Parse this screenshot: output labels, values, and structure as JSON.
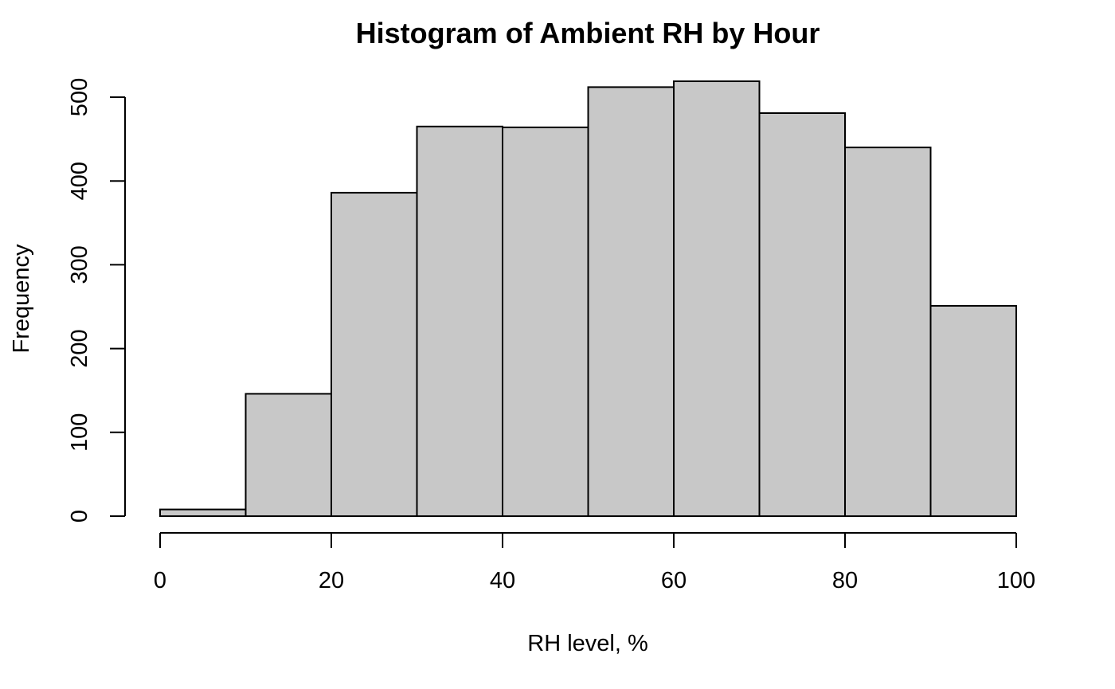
{
  "chart_data": {
    "type": "bar",
    "subtype": "histogram",
    "title": "Histogram of Ambient RH by Hour",
    "xlabel": "RH level, %",
    "ylabel": "Frequency",
    "bins": [
      {
        "start": 0,
        "end": 10,
        "count": 8
      },
      {
        "start": 10,
        "end": 20,
        "count": 146
      },
      {
        "start": 20,
        "end": 30,
        "count": 386
      },
      {
        "start": 30,
        "end": 40,
        "count": 465
      },
      {
        "start": 40,
        "end": 50,
        "count": 464
      },
      {
        "start": 50,
        "end": 60,
        "count": 512
      },
      {
        "start": 60,
        "end": 70,
        "count": 519
      },
      {
        "start": 70,
        "end": 80,
        "count": 481
      },
      {
        "start": 80,
        "end": 90,
        "count": 440
      },
      {
        "start": 90,
        "end": 100,
        "count": 251
      }
    ],
    "xlim": [
      0,
      100
    ],
    "ylim": [
      0,
      500
    ],
    "x_ticks": [
      "0",
      "20",
      "40",
      "60",
      "80",
      "100"
    ],
    "y_ticks": [
      "0",
      "100",
      "200",
      "300",
      "400",
      "500"
    ],
    "bar_color": "#c8c8c8",
    "grid": false,
    "legend": "none"
  }
}
